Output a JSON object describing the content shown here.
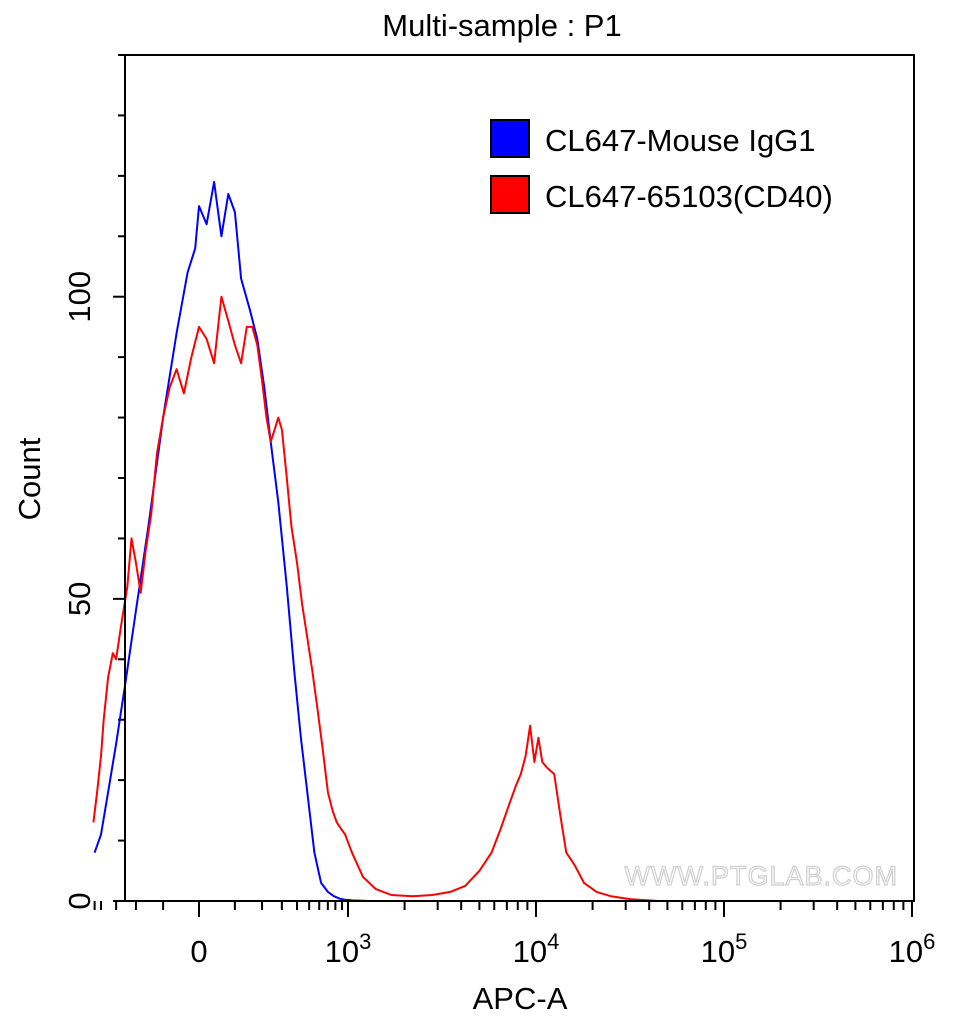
{
  "chart_data": {
    "type": "line",
    "title": "Multi-sample : P1",
    "xlabel": "APC-A",
    "ylabel": "Count",
    "xscale": "biexponential",
    "ylim": [
      0,
      140
    ],
    "yticks": [
      {
        "value": 0,
        "label": "0"
      },
      {
        "value": 50,
        "label": "50"
      },
      {
        "value": 100,
        "label": "100"
      }
    ],
    "xticks": [
      {
        "value": 0,
        "label": "0",
        "exp": ""
      },
      {
        "value": 1000,
        "label": "10",
        "exp": "3"
      },
      {
        "value": 10000,
        "label": "10",
        "exp": "4"
      },
      {
        "value": 100000,
        "label": "10",
        "exp": "5"
      },
      {
        "value": 1000000,
        "label": "10",
        "exp": "6"
      }
    ],
    "legend": {
      "position": "top-right"
    },
    "watermark": "WWW.PTGLAB.COM",
    "series": [
      {
        "name": "CL647-Mouse IgG1",
        "color": "#0000ff",
        "points": [
          [
            -450,
            8
          ],
          [
            -400,
            11
          ],
          [
            -350,
            18
          ],
          [
            -300,
            26
          ],
          [
            -250,
            36
          ],
          [
            -200,
            48
          ],
          [
            -150,
            62
          ],
          [
            -100,
            80
          ],
          [
            -60,
            94
          ],
          [
            -30,
            104
          ],
          [
            -10,
            108
          ],
          [
            0,
            115
          ],
          [
            20,
            112
          ],
          [
            40,
            119
          ],
          [
            60,
            110
          ],
          [
            80,
            117
          ],
          [
            100,
            114
          ],
          [
            120,
            103
          ],
          [
            150,
            98
          ],
          [
            180,
            93
          ],
          [
            210,
            85
          ],
          [
            240,
            76
          ],
          [
            280,
            66
          ],
          [
            330,
            52
          ],
          [
            380,
            38
          ],
          [
            430,
            27
          ],
          [
            490,
            17
          ],
          [
            550,
            8
          ],
          [
            620,
            3
          ],
          [
            700,
            1.5
          ],
          [
            780,
            0.8
          ],
          [
            860,
            0.4
          ],
          [
            950,
            0.2
          ],
          [
            1050,
            0.1
          ],
          [
            1300,
            0
          ]
        ]
      },
      {
        "name": "CL647-65103(CD40)",
        "color": "#ff0000",
        "points": [
          [
            -460,
            13
          ],
          [
            -430,
            18
          ],
          [
            -400,
            24
          ],
          [
            -380,
            30
          ],
          [
            -350,
            37
          ],
          [
            -320,
            41
          ],
          [
            -300,
            40
          ],
          [
            -270,
            46
          ],
          [
            -240,
            52
          ],
          [
            -220,
            60
          ],
          [
            -200,
            56
          ],
          [
            -180,
            51
          ],
          [
            -160,
            58
          ],
          [
            -140,
            64
          ],
          [
            -120,
            74
          ],
          [
            -100,
            80
          ],
          [
            -80,
            85
          ],
          [
            -60,
            88
          ],
          [
            -40,
            84
          ],
          [
            -20,
            90
          ],
          [
            0,
            95
          ],
          [
            20,
            93
          ],
          [
            40,
            89
          ],
          [
            60,
            100
          ],
          [
            80,
            96
          ],
          [
            100,
            92
          ],
          [
            120,
            89
          ],
          [
            140,
            95
          ],
          [
            160,
            95
          ],
          [
            180,
            92
          ],
          [
            200,
            86
          ],
          [
            220,
            80
          ],
          [
            240,
            76
          ],
          [
            260,
            78
          ],
          [
            280,
            80
          ],
          [
            300,
            78
          ],
          [
            330,
            70
          ],
          [
            360,
            62
          ],
          [
            400,
            56
          ],
          [
            440,
            49
          ],
          [
            480,
            44
          ],
          [
            530,
            38
          ],
          [
            580,
            32
          ],
          [
            640,
            25
          ],
          [
            700,
            18
          ],
          [
            760,
            15
          ],
          [
            820,
            13
          ],
          [
            880,
            12
          ],
          [
            950,
            11
          ],
          [
            1050,
            8
          ],
          [
            1200,
            4
          ],
          [
            1400,
            2
          ],
          [
            1700,
            1
          ],
          [
            2200,
            0.8
          ],
          [
            2800,
            1
          ],
          [
            3500,
            1.5
          ],
          [
            4200,
            2.5
          ],
          [
            5000,
            5
          ],
          [
            5800,
            8
          ],
          [
            6500,
            12
          ],
          [
            7200,
            16
          ],
          [
            7800,
            19
          ],
          [
            8300,
            21
          ],
          [
            8800,
            24
          ],
          [
            9300,
            29
          ],
          [
            9800,
            23
          ],
          [
            10300,
            27
          ],
          [
            10800,
            23
          ],
          [
            11500,
            22
          ],
          [
            12500,
            21
          ],
          [
            13500,
            14
          ],
          [
            14500,
            8
          ],
          [
            16000,
            6
          ],
          [
            18000,
            3
          ],
          [
            21000,
            1.5
          ],
          [
            25000,
            0.8
          ],
          [
            32000,
            0.3
          ],
          [
            45000,
            0
          ]
        ]
      }
    ]
  }
}
